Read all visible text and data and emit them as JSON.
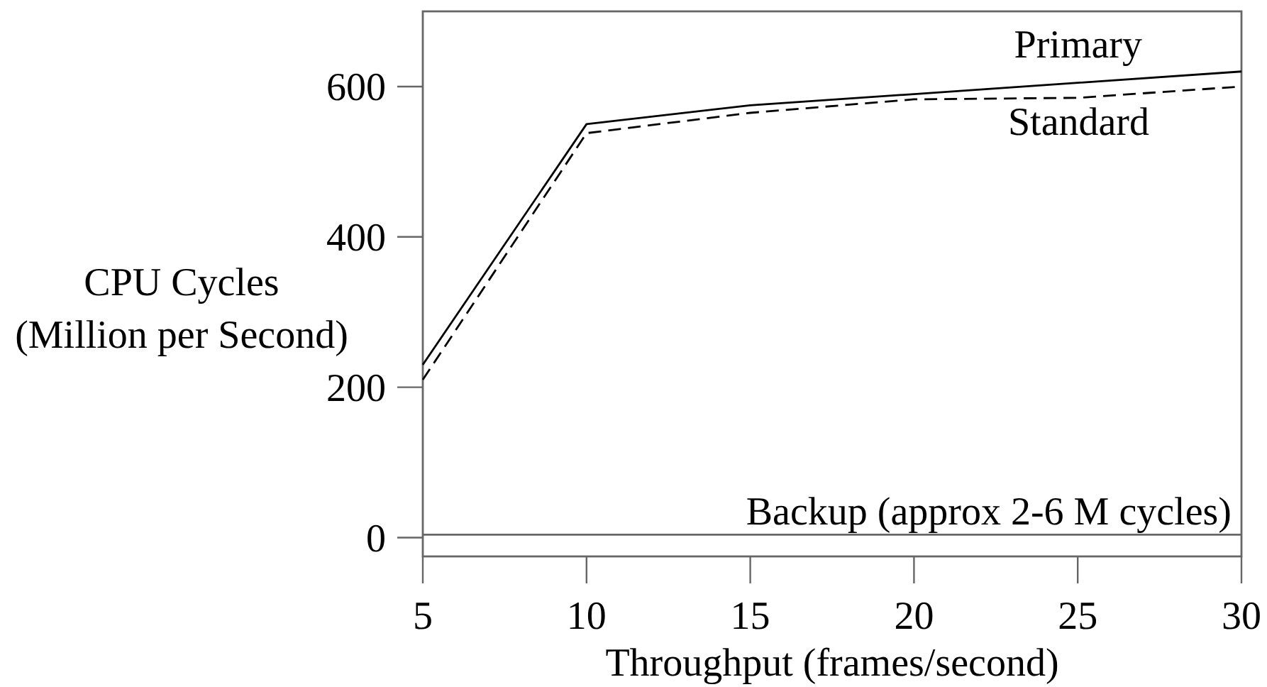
{
  "chart_data": {
    "type": "line",
    "xlabel": "Throughput (frames/second)",
    "ylabel": "CPU Cycles\n(Million per Second)",
    "x": [
      5,
      10,
      15,
      20,
      25,
      30
    ],
    "series": [
      {
        "name": "Primary",
        "color": "#000000",
        "line_style": "solid",
        "values": [
          230,
          550,
          575,
          590,
          605,
          620
        ]
      },
      {
        "name": "Standard",
        "color": "#000000",
        "line_style": "dashed",
        "values": [
          210,
          538,
          565,
          583,
          585,
          600
        ]
      },
      {
        "name": "Backup (approx 2-6 M cycles)",
        "color": "#666666",
        "line_style": "solid",
        "values": [
          4,
          4,
          4,
          4,
          4,
          4
        ]
      }
    ],
    "xlim": [
      5,
      30
    ],
    "ylim": [
      -25,
      700
    ],
    "xticks": [
      5,
      10,
      15,
      20,
      25,
      30
    ],
    "yticks": [
      0,
      200,
      400,
      600
    ]
  }
}
